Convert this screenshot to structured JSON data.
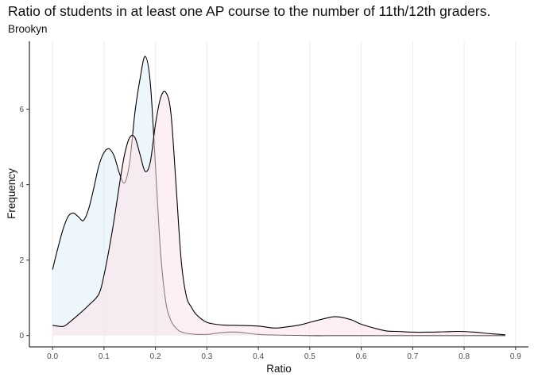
{
  "chart_data": {
    "type": "area",
    "title": "Ratio of students in at least one AP course to the number of 11th/12th graders.",
    "subtitle": "Brookyn",
    "xlabel": "Ratio",
    "ylabel": "Frequency",
    "xlim": [
      -0.045,
      0.925
    ],
    "ylim": [
      -0.3,
      7.8
    ],
    "x_ticks": [
      0.0,
      0.1,
      0.2,
      0.3,
      0.4,
      0.5,
      0.6,
      0.7,
      0.8,
      0.9
    ],
    "x_tick_labels": [
      "0.0",
      "0.1",
      "0.2",
      "0.3",
      "0.4",
      "0.5",
      "0.6",
      "0.7",
      "0.8",
      "0.9"
    ],
    "y_ticks": [
      0,
      2,
      4,
      6
    ],
    "y_tick_labels": [
      "0",
      "2",
      "4",
      "6"
    ],
    "grid": "vertical major lines",
    "legend": "none",
    "series": [
      {
        "color": "#ddeef8",
        "x": [
          0.0,
          0.01,
          0.02,
          0.03,
          0.04,
          0.05,
          0.06,
          0.07,
          0.08,
          0.09,
          0.1,
          0.11,
          0.12,
          0.13,
          0.14,
          0.15,
          0.16,
          0.17,
          0.18,
          0.19,
          0.2,
          0.21,
          0.22,
          0.23,
          0.24,
          0.25,
          0.27,
          0.3,
          0.33,
          0.36,
          0.4,
          0.45,
          0.5,
          0.55,
          0.6,
          0.7,
          0.8,
          0.88
        ],
        "values": [
          1.75,
          2.3,
          2.8,
          3.15,
          3.25,
          3.15,
          3.05,
          3.35,
          3.9,
          4.5,
          4.85,
          4.95,
          4.75,
          4.3,
          4.05,
          4.6,
          5.9,
          6.8,
          7.4,
          6.7,
          4.5,
          2.2,
          0.9,
          0.4,
          0.2,
          0.1,
          0.04,
          0.03,
          0.08,
          0.09,
          0.03,
          0.01,
          0.0,
          0.0,
          0.0,
          0.0,
          0.0,
          0.0
        ]
      },
      {
        "color": "#fde1e8",
        "x": [
          0.0,
          0.02,
          0.03,
          0.05,
          0.07,
          0.09,
          0.1,
          0.11,
          0.12,
          0.13,
          0.14,
          0.15,
          0.16,
          0.17,
          0.18,
          0.19,
          0.2,
          0.21,
          0.22,
          0.23,
          0.24,
          0.25,
          0.26,
          0.27,
          0.28,
          0.3,
          0.33,
          0.36,
          0.4,
          0.43,
          0.45,
          0.48,
          0.5,
          0.52,
          0.55,
          0.58,
          0.6,
          0.63,
          0.65,
          0.67,
          0.7,
          0.73,
          0.76,
          0.79,
          0.82,
          0.85,
          0.88
        ],
        "values": [
          0.27,
          0.24,
          0.32,
          0.55,
          0.8,
          1.1,
          1.6,
          2.3,
          3.1,
          4.0,
          4.8,
          5.25,
          5.25,
          4.8,
          4.35,
          4.6,
          5.6,
          6.3,
          6.45,
          5.9,
          4.0,
          2.0,
          1.05,
          0.75,
          0.55,
          0.35,
          0.28,
          0.27,
          0.25,
          0.2,
          0.22,
          0.28,
          0.35,
          0.42,
          0.5,
          0.42,
          0.3,
          0.18,
          0.12,
          0.11,
          0.09,
          0.09,
          0.1,
          0.11,
          0.09,
          0.05,
          0.02
        ]
      }
    ]
  }
}
